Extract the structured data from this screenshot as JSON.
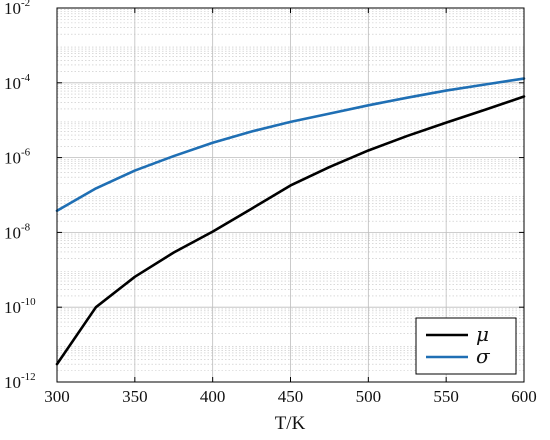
{
  "chart_data": {
    "type": "line",
    "title": "",
    "xlabel": "T/K",
    "ylabel": "",
    "xlim": [
      300,
      600
    ],
    "ylim": [
      1e-12,
      0.01
    ],
    "yscale": "log",
    "grid": true,
    "minor_grid": true,
    "legend_position": "bottom-right",
    "x_ticks": [
      300,
      350,
      400,
      450,
      500,
      550,
      600
    ],
    "y_ticks": [
      {
        "base": "10",
        "exp": "-12",
        "value": 1e-12
      },
      {
        "base": "10",
        "exp": "-10",
        "value": 1e-10
      },
      {
        "base": "10",
        "exp": "-8",
        "value": 1e-08
      },
      {
        "base": "10",
        "exp": "-6",
        "value": 1e-06
      },
      {
        "base": "10",
        "exp": "-4",
        "value": 0.0001
      },
      {
        "base": "10",
        "exp": "-2",
        "value": 0.01
      }
    ],
    "x": [
      300,
      325,
      350,
      375,
      400,
      425,
      450,
      475,
      500,
      525,
      550,
      575,
      600
    ],
    "series": [
      {
        "name": "μ",
        "color": "#000000",
        "values": [
          3e-12,
          1e-10,
          6.5e-10,
          2.9e-09,
          1.05e-08,
          4.3e-08,
          1.8e-07,
          5.6e-07,
          1.55e-06,
          3.8e-06,
          8.6e-06,
          1.9e-05,
          4.3e-05
        ]
      },
      {
        "name": "σ",
        "color": "#1f6fb4",
        "values": [
          3.8e-08,
          1.5e-07,
          4.5e-07,
          1.1e-06,
          2.5e-06,
          5e-06,
          9e-06,
          1.5e-05,
          2.5e-05,
          4e-05,
          6.2e-05,
          9e-05,
          0.00013
        ]
      }
    ]
  }
}
